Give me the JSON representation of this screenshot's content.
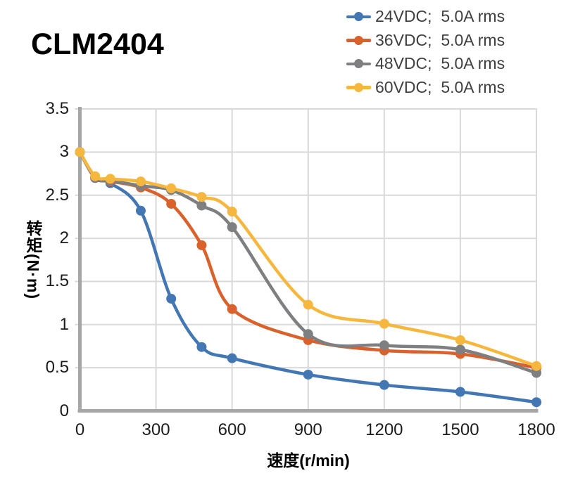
{
  "title": "CLM2404",
  "chart_data": {
    "type": "line",
    "title": "CLM2404",
    "xlabel": "速度(r/min)",
    "ylabel": "转矩(N·m)",
    "xlim": [
      0,
      1800
    ],
    "ylim": [
      0,
      3.5
    ],
    "grid": true,
    "legend_position": "top-right",
    "x_ticks": [
      0,
      300,
      600,
      900,
      1200,
      1500,
      1800
    ],
    "x_tick_labels": [
      "0",
      "300",
      "600",
      "900",
      "1200",
      "1500",
      "1800"
    ],
    "y_ticks": [
      0,
      0.5,
      1,
      1.5,
      2,
      2.5,
      3,
      3.5
    ],
    "y_tick_labels": [
      "0",
      "0.5",
      "1",
      "1.5",
      "2",
      "2.5",
      "3",
      "3.5"
    ],
    "x": [
      0,
      60,
      120,
      240,
      360,
      480,
      600,
      900,
      1200,
      1500,
      1800
    ],
    "series": [
      {
        "label": "24VDC;  5.0A rms",
        "color": "#4377B4",
        "values": [
          3.0,
          2.7,
          2.64,
          2.32,
          1.3,
          0.74,
          0.61,
          0.42,
          0.3,
          0.22,
          0.1
        ]
      },
      {
        "label": "36VDC;  5.0A rms",
        "color": "#D9622C",
        "values": [
          3.0,
          2.7,
          2.66,
          2.59,
          2.4,
          1.92,
          1.18,
          0.82,
          0.7,
          0.66,
          0.5
        ]
      },
      {
        "label": "48VDC;  5.0A rms",
        "color": "#7E7F81",
        "values": [
          3.0,
          2.7,
          2.67,
          2.61,
          2.56,
          2.38,
          2.13,
          0.89,
          0.76,
          0.71,
          0.44
        ]
      },
      {
        "label": "60VDC;  5.0A rms",
        "color": "#F6B73E",
        "values": [
          3.0,
          2.72,
          2.69,
          2.66,
          2.58,
          2.48,
          2.31,
          1.23,
          1.01,
          0.82,
          0.52
        ]
      }
    ],
    "colors": {
      "gridline": "#D9D9D9",
      "axis": "#A6A6A6",
      "tick_text": "#1C1C1C",
      "legend_text": "#3F3F3F",
      "title_text": "#000000"
    }
  }
}
